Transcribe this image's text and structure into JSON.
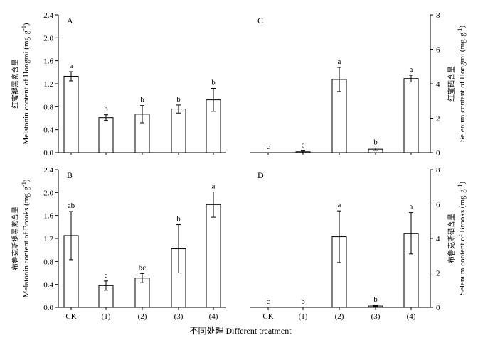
{
  "figure": {
    "xlabel": "不同处理 Different treatment",
    "categories": [
      "CK",
      "(1)",
      "(2)",
      "(3)",
      "(4)"
    ]
  },
  "chart_data": [
    {
      "panel": "A",
      "type": "bar",
      "categories": [
        "CK",
        "(1)",
        "(2)",
        "(3)",
        "(4)"
      ],
      "values": [
        1.33,
        0.61,
        0.67,
        0.76,
        0.92
      ],
      "errors": [
        0.08,
        0.05,
        0.15,
        0.07,
        0.2
      ],
      "letters": [
        "a",
        "b",
        "b",
        "b",
        "b"
      ],
      "ylabel_cn": "红蜜褪黑素含量",
      "ylabel_en": "Melatonin content of Hongmi (mg·g",
      "ylabel_sup": "-1",
      "ylabel_close": ")",
      "ylim": [
        0,
        2.4
      ],
      "yticks": [
        "0.0",
        "0.4",
        "0.8",
        "1.2",
        "1.6",
        "2.0",
        "2.4"
      ],
      "axis_side": "left"
    },
    {
      "panel": "C",
      "type": "bar",
      "categories": [
        "CK",
        "(1)",
        "(2)",
        "(3)",
        "(4)"
      ],
      "values": [
        0,
        0.05,
        4.25,
        0.2,
        4.3
      ],
      "errors": [
        0,
        0.05,
        0.7,
        0.07,
        0.2
      ],
      "letters": [
        "c",
        "c",
        "a",
        "b",
        "a"
      ],
      "ylabel_cn": "红蜜硒含量",
      "ylabel_en": "Selenum content of Hongmi (mg·g",
      "ylabel_sup": "-1",
      "ylabel_close": ")",
      "ylim": [
        0,
        8
      ],
      "yticks": [
        "0",
        "2",
        "4",
        "6",
        "8"
      ],
      "axis_side": "right"
    },
    {
      "panel": "B",
      "type": "bar",
      "categories": [
        "CK",
        "(1)",
        "(2)",
        "(3)",
        "(4)"
      ],
      "values": [
        1.25,
        0.38,
        0.51,
        1.02,
        1.79
      ],
      "errors": [
        0.42,
        0.08,
        0.08,
        0.42,
        0.22
      ],
      "letters": [
        "ab",
        "c",
        "bc",
        "b",
        "a"
      ],
      "ylabel_cn": "布鲁克斯褪黑素含量",
      "ylabel_en": "Melatonin content of Brooks (mg·g",
      "ylabel_sup": "-1",
      "ylabel_close": ")",
      "ylim": [
        0,
        2.4
      ],
      "yticks": [
        "0.0",
        "0.4",
        "0.8",
        "1.2",
        "1.6",
        "2.0",
        "2.4"
      ],
      "axis_side": "left"
    },
    {
      "panel": "D",
      "type": "bar",
      "categories": [
        "CK",
        "(1)",
        "(2)",
        "(3)",
        "(4)"
      ],
      "values": [
        0,
        0,
        4.1,
        0.08,
        4.3
      ],
      "errors": [
        0,
        0,
        1.5,
        0.04,
        1.2
      ],
      "letters": [
        "c",
        "b",
        "a",
        "b",
        "a"
      ],
      "ylabel_cn": "布鲁克斯硒含量",
      "ylabel_en": "Selenum content of Brooks (mg·g",
      "ylabel_sup": "-1",
      "ylabel_close": ")",
      "ylim": [
        0,
        8
      ],
      "yticks": [
        "0",
        "2",
        "4",
        "6",
        "8"
      ],
      "axis_side": "right"
    }
  ]
}
